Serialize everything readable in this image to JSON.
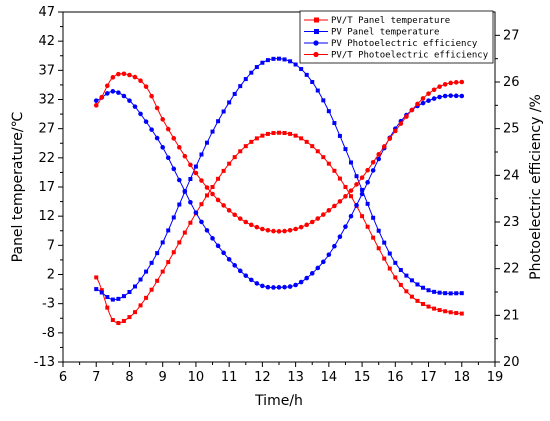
{
  "chart_data": {
    "type": "line",
    "xlabel": "Time/h",
    "ylabel_left": "Panel temperature/℃",
    "ylabel_right": "Photoelectric efficiency /%",
    "xlim": [
      6,
      19
    ],
    "ylim_left": [
      -13,
      47
    ],
    "ylim_right": [
      20,
      27.5
    ],
    "xticks": [
      6,
      7,
      8,
      9,
      10,
      11,
      12,
      13,
      14,
      15,
      16,
      17,
      18,
      19
    ],
    "yticks_left": [
      -13,
      -8,
      -3,
      2,
      7,
      12,
      17,
      22,
      27,
      32,
      37,
      42,
      47
    ],
    "yticks_right": [
      20,
      21,
      22,
      23,
      24,
      25,
      26,
      27
    ],
    "grid": false,
    "legend_position": "top-right",
    "series": [
      {
        "name": "PV/T Panel temperature",
        "axis": "left",
        "color": "#ff0000",
        "marker": "square",
        "x": [
          7.0,
          7.5,
          8.0,
          8.5,
          9.0,
          9.5,
          10.0,
          10.5,
          11.0,
          11.5,
          12.0,
          12.5,
          13.0,
          13.5,
          14.0,
          14.5,
          15.0,
          15.5,
          16.0,
          16.5,
          17.0,
          17.5,
          18.0
        ],
        "y": [
          1.5,
          -5.8,
          -5.3,
          -2.0,
          2.5,
          7.5,
          12.5,
          17.0,
          21.0,
          24.0,
          25.8,
          26.3,
          25.8,
          24.0,
          21.0,
          17.0,
          12.0,
          6.5,
          1.5,
          -1.8,
          -3.5,
          -4.3,
          -4.7
        ]
      },
      {
        "name": "PV Panel temperature",
        "axis": "left",
        "color": "#0000ff",
        "marker": "square",
        "x": [
          7.0,
          7.5,
          8.0,
          8.5,
          9.0,
          9.5,
          10.0,
          10.5,
          11.0,
          11.5,
          12.0,
          12.5,
          13.0,
          13.5,
          14.0,
          14.5,
          15.0,
          15.5,
          16.0,
          16.5,
          17.0,
          17.5,
          18.0
        ],
        "y": [
          -0.5,
          -2.3,
          -1.0,
          2.5,
          7.5,
          14.0,
          20.5,
          26.5,
          31.5,
          35.5,
          38.3,
          39.0,
          38.0,
          35.0,
          30.0,
          23.5,
          16.5,
          9.5,
          4.0,
          1.0,
          -0.7,
          -1.2,
          -1.2
        ]
      },
      {
        "name": "PV Photoelectric efficiency",
        "axis": "right",
        "color": "#0000ff",
        "marker": "circle",
        "x": [
          7.0,
          7.5,
          8.0,
          8.5,
          9.0,
          9.5,
          10.0,
          10.5,
          11.0,
          11.5,
          12.0,
          12.5,
          13.0,
          13.5,
          14.0,
          14.5,
          15.0,
          15.5,
          16.0,
          16.5,
          17.0,
          17.5,
          18.0
        ],
        "y": [
          25.6,
          25.8,
          25.6,
          25.15,
          24.6,
          23.9,
          23.2,
          22.65,
          22.2,
          21.85,
          21.63,
          21.6,
          21.65,
          21.9,
          22.3,
          22.9,
          23.6,
          24.35,
          25.0,
          25.4,
          25.6,
          25.7,
          25.7
        ]
      },
      {
        "name": "PV/T Photoelectric efficiency",
        "axis": "right",
        "color": "#ff0000",
        "marker": "circle",
        "x": [
          7.0,
          7.5,
          8.0,
          8.5,
          9.0,
          9.5,
          10.0,
          10.5,
          11.0,
          11.5,
          12.0,
          12.5,
          13.0,
          13.5,
          14.0,
          14.5,
          15.0,
          15.5,
          16.0,
          16.5,
          17.0,
          17.5,
          18.0
        ],
        "y": [
          25.5,
          26.1,
          26.15,
          25.9,
          25.2,
          24.6,
          24.05,
          23.6,
          23.25,
          23.0,
          22.85,
          22.8,
          22.85,
          23.0,
          23.25,
          23.55,
          23.95,
          24.45,
          24.95,
          25.4,
          25.75,
          25.95,
          26.0
        ]
      }
    ]
  }
}
